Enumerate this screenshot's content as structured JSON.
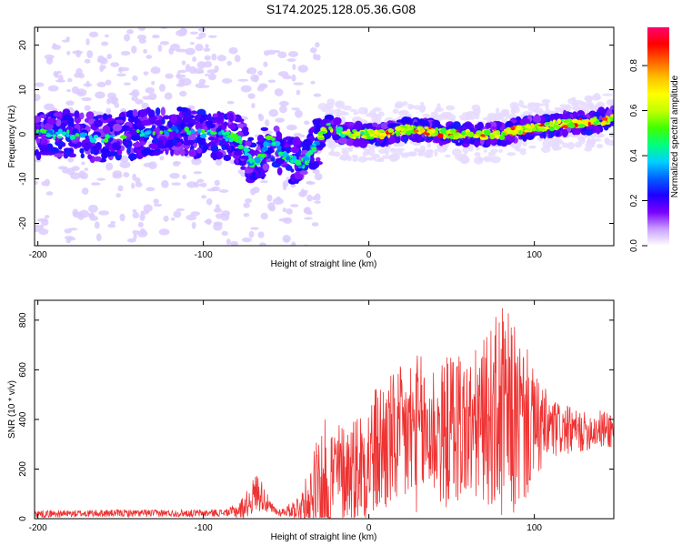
{
  "title": "S174.2025.128.05.36.G08",
  "chart_data": [
    {
      "type": "heatmap",
      "title": "S174.2025.128.05.36.G08",
      "xlabel": "Height of straight line (km)",
      "ylabel": "Frequency (Hz)",
      "xlim": [
        -202,
        148
      ],
      "ylim": [
        -25,
        24
      ],
      "xticks": [
        -200,
        -100,
        0,
        100
      ],
      "yticks": [
        -20,
        -10,
        0,
        10,
        20
      ],
      "colorbar": {
        "label": "Normalized spectral amplitude",
        "range": [
          0,
          0.97
        ],
        "ticks": [
          "0.0",
          "0.2",
          "0.4",
          "0.6",
          "0.8"
        ],
        "colormap": [
          "#ffffff",
          "#c9a0ff",
          "#7a00ff",
          "#1e00ff",
          "#0060ff",
          "#00d0ff",
          "#00ff80",
          "#40ff00",
          "#c0ff00",
          "#ffff00",
          "#ffc000",
          "#ff6000",
          "#ff0000",
          "#ff0070"
        ]
      },
      "ridge": {
        "x": [
          -200,
          -180,
          -160,
          -140,
          -120,
          -100,
          -90,
          -80,
          -75,
          -70,
          -65,
          -60,
          -55,
          -50,
          -45,
          -40,
          -35,
          -30,
          -25,
          -20,
          -10,
          0,
          10,
          20,
          30,
          40,
          50,
          60,
          70,
          80,
          90,
          100,
          110,
          120,
          130,
          140,
          148
        ],
        "y": [
          0,
          0,
          -1,
          0,
          1,
          0,
          0,
          -1,
          -3,
          -7,
          -5,
          -1,
          -3,
          -5,
          -6,
          -7,
          -4,
          -1,
          2,
          1,
          0,
          0,
          0,
          1,
          1,
          0.5,
          0,
          0,
          0,
          0,
          1,
          1.5,
          2,
          2.5,
          2.5,
          3,
          3.5
        ]
      }
    },
    {
      "type": "line",
      "title": "",
      "xlabel": "Height of straight line (km)",
      "ylabel": "SNR (10 * v/v)",
      "xlim": [
        -202,
        148
      ],
      "ylim": [
        0,
        880
      ],
      "xticks": [
        -200,
        -100,
        0,
        100
      ],
      "yticks": [
        0,
        200,
        400,
        600,
        800
      ],
      "series": [
        {
          "color": "#ee3333",
          "envelope": {
            "x": [
              -202,
              -180,
              -160,
              -140,
              -120,
              -100,
              -85,
              -78,
              -72,
              -68,
              -64,
              -60,
              -55,
              -50,
              -45,
              -40,
              -35,
              -30,
              -25,
              -20,
              -15,
              -10,
              -5,
              0,
              5,
              10,
              15,
              20,
              25,
              30,
              35,
              40,
              45,
              50,
              55,
              60,
              65,
              70,
              75,
              80,
              85,
              90,
              95,
              100,
              105,
              110,
              115,
              120,
              125,
              130,
              135,
              140,
              148
            ],
            "center": [
              20,
              20,
              22,
              22,
              22,
              22,
              25,
              35,
              70,
              110,
              90,
              45,
              25,
              30,
              40,
              55,
              80,
              130,
              160,
              180,
              190,
              200,
              220,
              240,
              270,
              300,
              310,
              320,
              340,
              350,
              340,
              360,
              330,
              370,
              380,
              350,
              370,
              400,
              410,
              420,
              400,
              390,
              380,
              370,
              360,
              360,
              360,
              355,
              350,
              350,
              360,
              360,
              360
            ],
            "amp": [
              15,
              15,
              15,
              15,
              15,
              15,
              15,
              40,
              60,
              80,
              60,
              30,
              15,
              20,
              40,
              70,
              150,
              250,
              250,
              220,
              200,
              220,
              240,
              260,
              280,
              300,
              280,
              300,
              330,
              320,
              300,
              300,
              300,
              320,
              330,
              300,
              320,
              330,
              380,
              460,
              420,
              380,
              320,
              220,
              180,
              140,
              110,
              100,
              90,
              80,
              80,
              80,
              80
            ]
          }
        }
      ]
    }
  ]
}
